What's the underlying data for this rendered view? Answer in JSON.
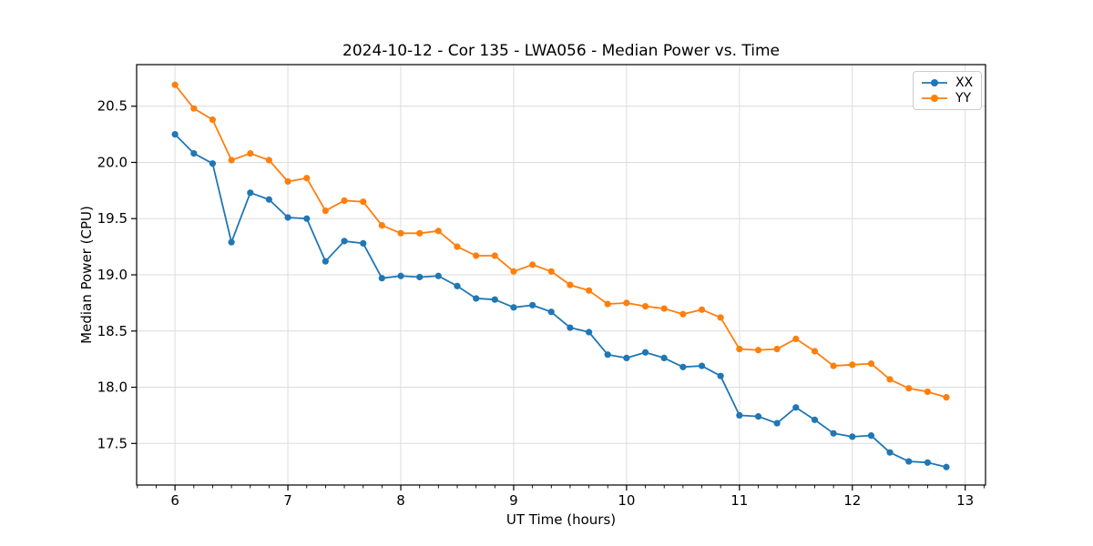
{
  "figure": {
    "title": "2024-10-12 - Cor 135 - LWA056 - Median Power vs. Time",
    "xlabel": "UT Time (hours)",
    "ylabel": "Median Power (CPU)"
  },
  "legend": {
    "items": [
      {
        "label": "XX",
        "color": "#1f77b4"
      },
      {
        "label": "YY",
        "color": "#ff7f0e"
      }
    ]
  },
  "colors": {
    "series_xx": "#1f77b4",
    "series_yy": "#ff7f0e",
    "grid": "#dcdcdc",
    "axis": "#000000",
    "background": "#ffffff"
  },
  "chart_data": {
    "type": "line",
    "title": "2024-10-12 - Cor 135 - LWA056 - Median Power vs. Time",
    "xlabel": "UT Time (hours)",
    "ylabel": "Median Power (CPU)",
    "legend_position": "upper right",
    "grid": true,
    "marker": "o",
    "xlim": [
      5.66,
      13.18
    ],
    "ylim": [
      17.13,
      20.87
    ],
    "xticks": [
      6,
      7,
      8,
      9,
      10,
      11,
      12,
      13
    ],
    "yticks": [
      17.5,
      18.0,
      18.5,
      19.0,
      19.5,
      20.0,
      20.5
    ],
    "x_minor_step": 0.16667,
    "x": [
      6.0,
      6.167,
      6.333,
      6.5,
      6.667,
      6.833,
      7.0,
      7.167,
      7.333,
      7.5,
      7.667,
      7.833,
      8.0,
      8.167,
      8.333,
      8.5,
      8.667,
      8.833,
      9.0,
      9.167,
      9.333,
      9.5,
      9.667,
      9.833,
      10.0,
      10.167,
      10.333,
      10.5,
      10.667,
      10.833,
      11.0,
      11.167,
      11.333,
      11.5,
      11.667,
      11.833,
      12.0,
      12.167,
      12.333,
      12.5,
      12.667,
      12.833
    ],
    "series": [
      {
        "name": "XX",
        "color": "#1f77b4",
        "values": [
          20.25,
          20.08,
          19.99,
          19.29,
          19.73,
          19.67,
          19.51,
          19.5,
          19.12,
          19.3,
          19.28,
          18.97,
          18.99,
          18.98,
          18.99,
          18.9,
          18.79,
          18.78,
          18.71,
          18.73,
          18.67,
          18.53,
          18.49,
          18.29,
          18.26,
          18.31,
          18.26,
          18.18,
          18.19,
          18.1,
          17.75,
          17.74,
          17.68,
          17.82,
          17.71,
          17.59,
          17.56,
          17.57,
          17.42,
          17.34,
          17.33,
          17.29
        ]
      },
      {
        "name": "YY",
        "color": "#ff7f0e",
        "values": [
          20.69,
          20.48,
          20.38,
          20.02,
          20.08,
          20.02,
          19.83,
          19.86,
          19.57,
          19.66,
          19.65,
          19.44,
          19.37,
          19.37,
          19.39,
          19.25,
          19.17,
          19.17,
          19.03,
          19.09,
          19.03,
          18.91,
          18.86,
          18.74,
          18.75,
          18.72,
          18.7,
          18.65,
          18.69,
          18.62,
          18.34,
          18.33,
          18.34,
          18.43,
          18.32,
          18.19,
          18.2,
          18.21,
          18.07,
          17.99,
          17.96,
          17.91
        ]
      }
    ]
  }
}
